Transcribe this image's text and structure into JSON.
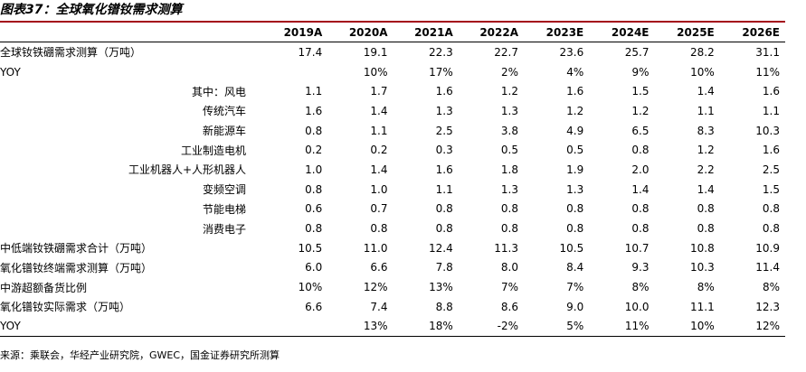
{
  "title": "图表37：全球氧化镨钕需求测算",
  "columns": [
    "2019A",
    "2020A",
    "2021A",
    "2022A",
    "2023E",
    "2024E",
    "2025E",
    "2026E"
  ],
  "rows": [
    {
      "label": "全球钕铁硼需求测算（万吨）",
      "sub": false,
      "values": [
        "17.4",
        "19.1",
        "22.3",
        "22.7",
        "23.6",
        "25.7",
        "28.2",
        "31.1"
      ]
    },
    {
      "label": "YOY",
      "sub": false,
      "values": [
        "",
        "10%",
        "17%",
        "2%",
        "4%",
        "9%",
        "10%",
        "11%"
      ]
    },
    {
      "label": "其中：风电",
      "sub": true,
      "values": [
        "1.1",
        "1.7",
        "1.6",
        "1.2",
        "1.6",
        "1.5",
        "1.4",
        "1.6"
      ]
    },
    {
      "label": "传统汽车",
      "sub": true,
      "values": [
        "1.6",
        "1.4",
        "1.3",
        "1.3",
        "1.2",
        "1.2",
        "1.1",
        "1.1"
      ]
    },
    {
      "label": "新能源车",
      "sub": true,
      "values": [
        "0.8",
        "1.1",
        "2.5",
        "3.8",
        "4.9",
        "6.5",
        "8.3",
        "10.3"
      ]
    },
    {
      "label": "工业制造电机",
      "sub": true,
      "values": [
        "0.2",
        "0.2",
        "0.3",
        "0.5",
        "0.5",
        "0.8",
        "1.2",
        "1.6"
      ]
    },
    {
      "label": "工业机器人+人形机器人",
      "sub": true,
      "values": [
        "1.0",
        "1.4",
        "1.6",
        "1.8",
        "1.9",
        "2.0",
        "2.2",
        "2.5"
      ]
    },
    {
      "label": "变频空调",
      "sub": true,
      "values": [
        "0.8",
        "1.0",
        "1.1",
        "1.3",
        "1.3",
        "1.4",
        "1.4",
        "1.5"
      ]
    },
    {
      "label": "节能电梯",
      "sub": true,
      "values": [
        "0.6",
        "0.7",
        "0.8",
        "0.8",
        "0.8",
        "0.8",
        "0.8",
        "0.8"
      ]
    },
    {
      "label": "消费电子",
      "sub": true,
      "values": [
        "0.8",
        "0.8",
        "0.8",
        "0.8",
        "0.8",
        "0.8",
        "0.8",
        "0.8"
      ]
    },
    {
      "label": "中低端钕铁硼需求合计（万吨）",
      "sub": false,
      "values": [
        "10.5",
        "11.0",
        "12.4",
        "11.3",
        "10.5",
        "10.7",
        "10.8",
        "10.9"
      ]
    },
    {
      "label": "氧化镨钕终端需求测算（万吨）",
      "sub": false,
      "values": [
        "6.0",
        "6.6",
        "7.8",
        "8.0",
        "8.4",
        "9.3",
        "10.3",
        "11.4"
      ]
    },
    {
      "label": "中游超额备货比例",
      "sub": false,
      "values": [
        "10%",
        "12%",
        "13%",
        "7%",
        "7%",
        "8%",
        "8%",
        "8%"
      ]
    },
    {
      "label": "氧化镨钕实际需求（万吨）",
      "sub": false,
      "values": [
        "6.6",
        "7.4",
        "8.8",
        "8.6",
        "9.0",
        "10.0",
        "11.1",
        "12.3"
      ]
    },
    {
      "label": "YOY",
      "sub": false,
      "values": [
        "",
        "13%",
        "18%",
        "-2%",
        "5%",
        "11%",
        "10%",
        "12%"
      ]
    }
  ],
  "source": "来源：乘联会，华经产业研究院，GWEC，国金证券研究所测算"
}
